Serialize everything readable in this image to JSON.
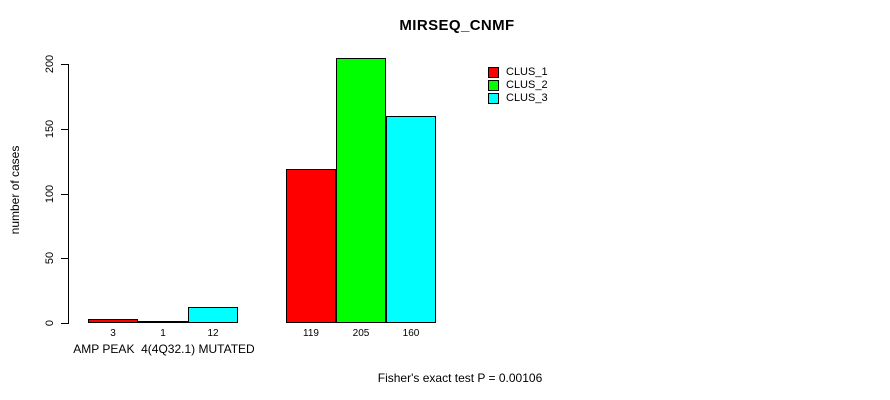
{
  "title": "MIRSEQ_CNMF",
  "chart_data": {
    "type": "bar",
    "title": "MIRSEQ_CNMF",
    "ylabel": "number of cases",
    "xlabel": "",
    "ylim": [
      0,
      205
    ],
    "yticks": [
      0,
      50,
      100,
      150,
      200
    ],
    "grid": false,
    "legend_position": "top-right",
    "bar_value_labels_shown": true,
    "group_labels": [
      "AMP PEAK  4(4Q32.1) MUTATED",
      ""
    ],
    "series": [
      {
        "name": "CLUS_1",
        "color": "#ff0000",
        "values": [
          3,
          119
        ]
      },
      {
        "name": "CLUS_2",
        "color": "#00ff00",
        "values": [
          1,
          205
        ]
      },
      {
        "name": "CLUS_3",
        "color": "#00ffff",
        "values": [
          12,
          160
        ]
      }
    ],
    "annotation": "Fisher's exact test P = 0.00106"
  },
  "colors": {
    "background": "#ffffff",
    "axis": "#000000",
    "text": "#000000",
    "bar_border": "#000000",
    "clus_1": "#ff0000",
    "clus_2": "#00ff00",
    "clus_3": "#00ffff"
  }
}
